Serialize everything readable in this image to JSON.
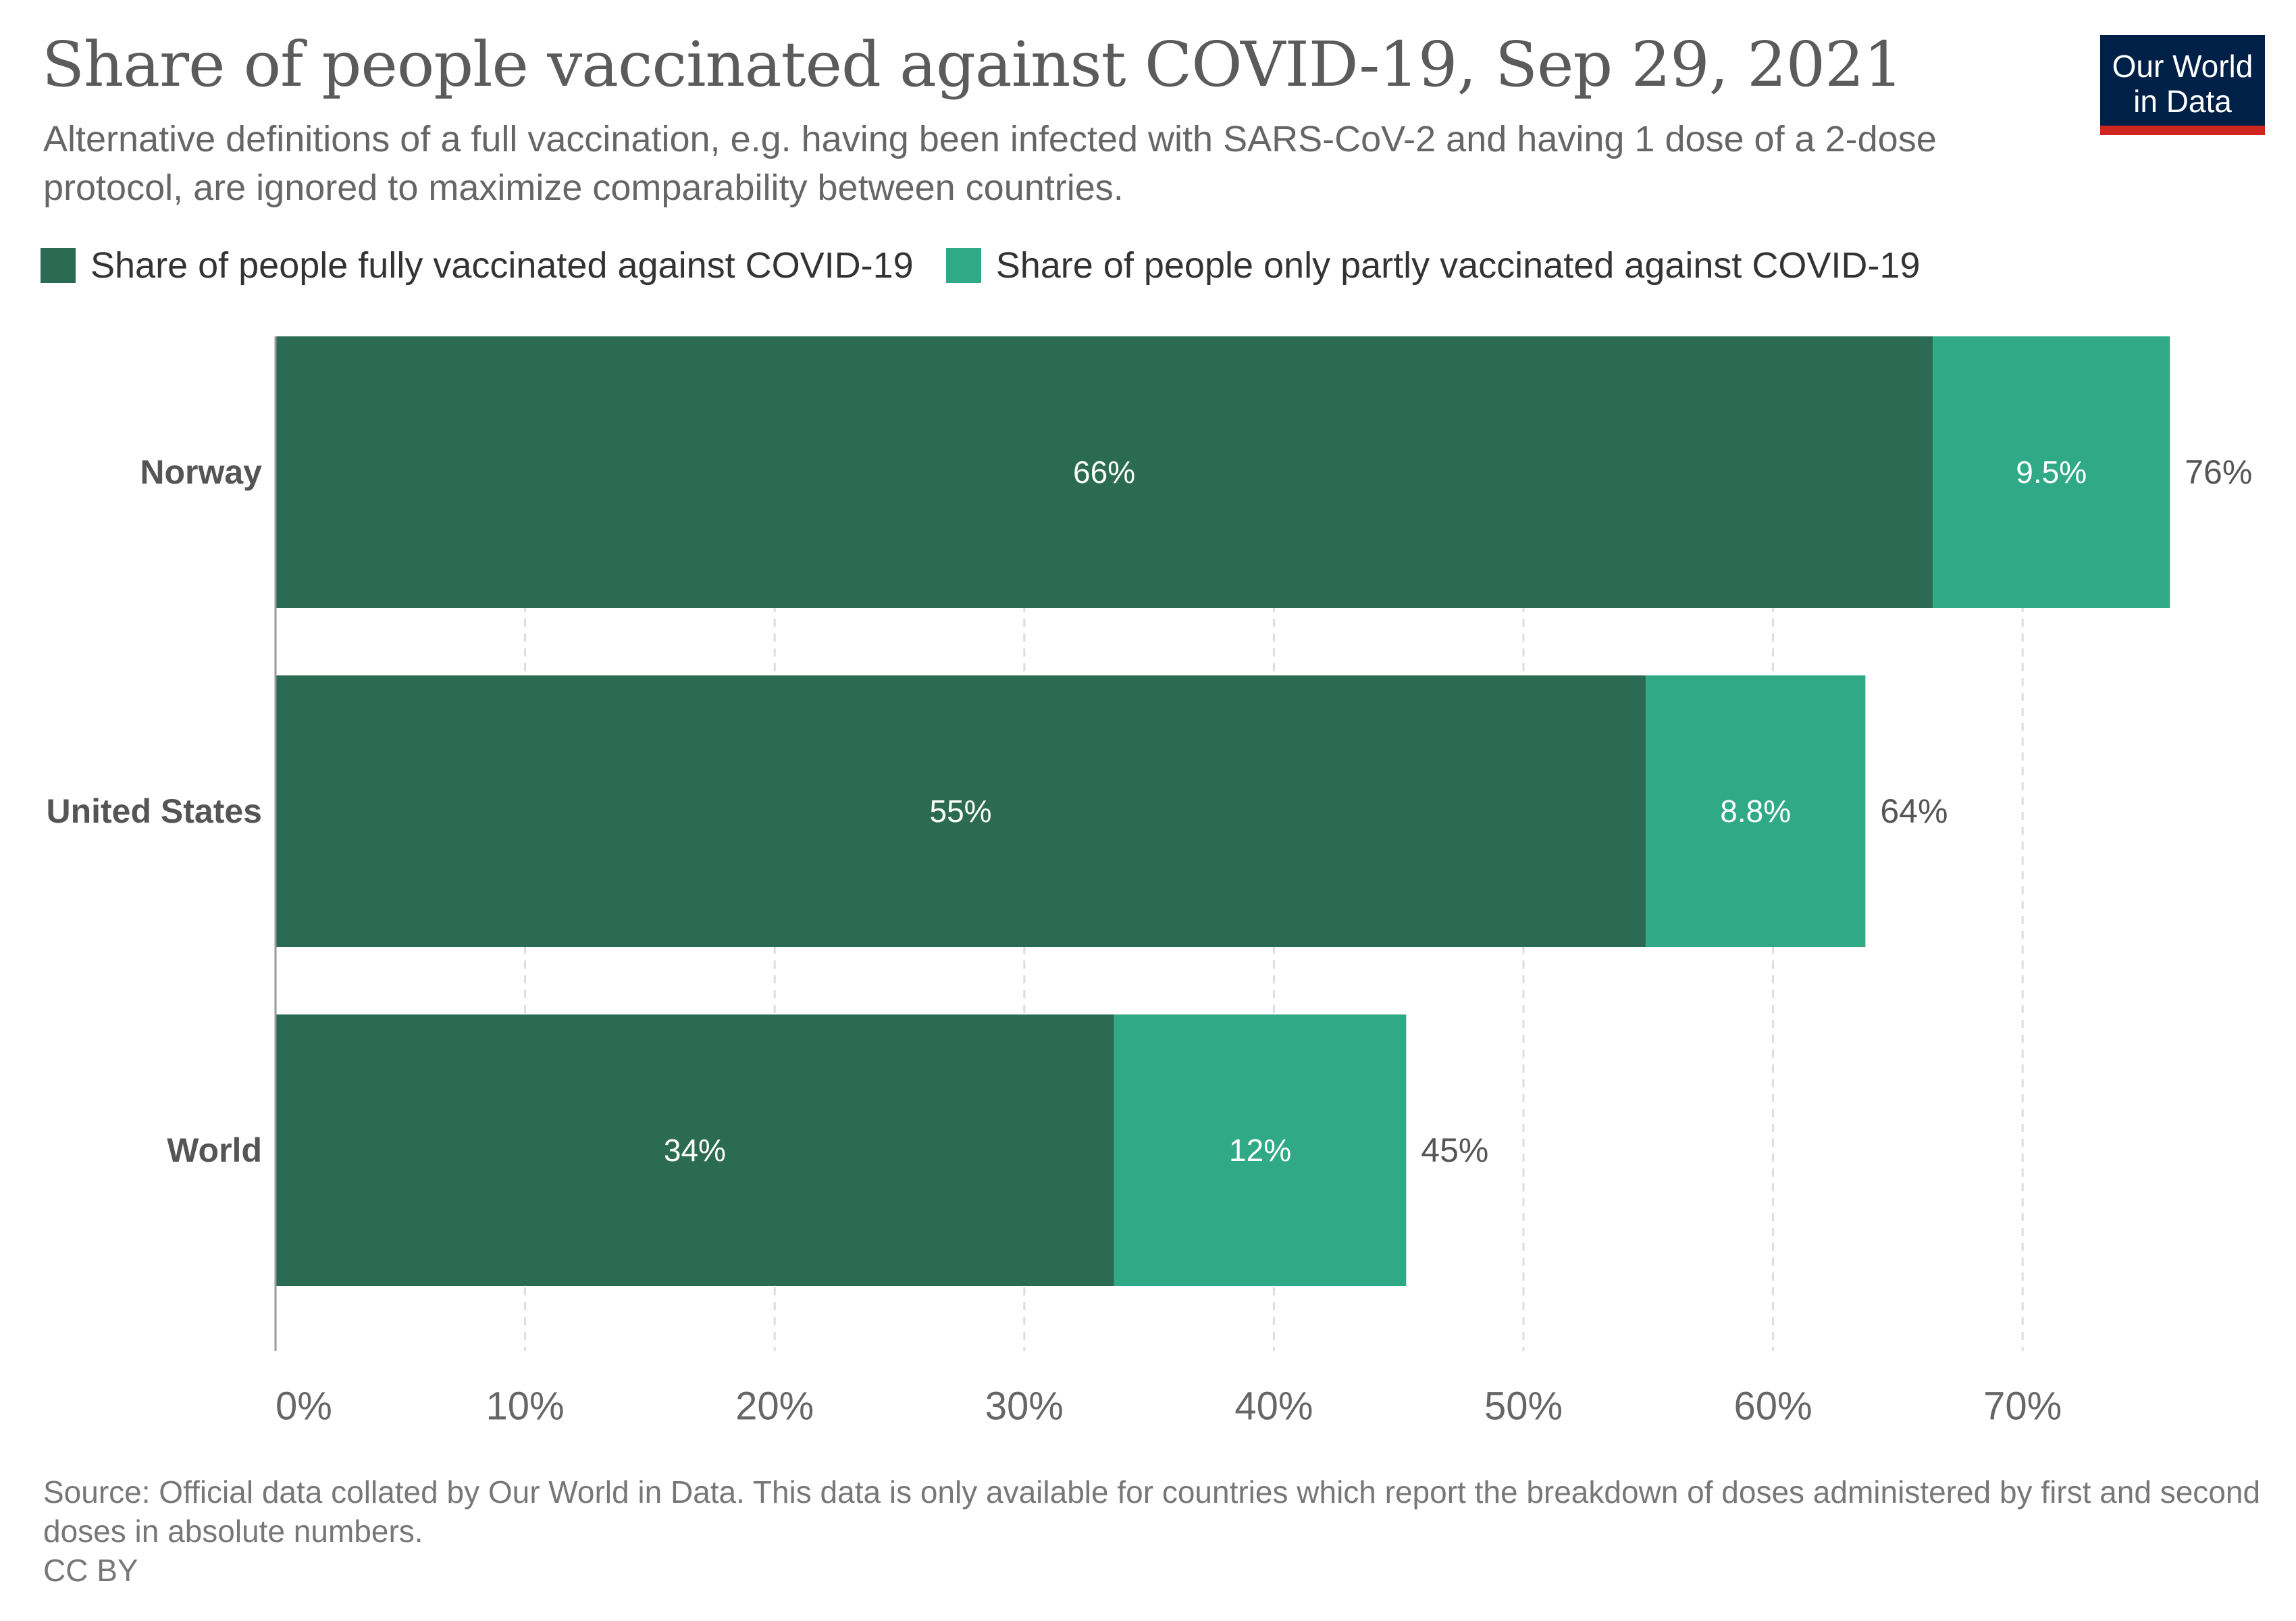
{
  "title": "Share of people vaccinated against COVID-19, Sep 29, 2021",
  "subtitle": "Alternative definitions of a full vaccination, e.g. having been infected with SARS-CoV-2 and having 1 dose of a 2-dose protocol, are ignored to maximize comparability between countries.",
  "logo": {
    "line1": "Our World",
    "line2": "in Data"
  },
  "legend": [
    {
      "label": "Share of people fully vaccinated against COVID-19",
      "color": "#2c6b53"
    },
    {
      "label": "Share of people only partly vaccinated against COVID-19",
      "color": "#30aa86"
    }
  ],
  "footer": {
    "source": "Source: Official data collated by Our World in Data. This data is only available for countries which report the breakdown of doses administered by first and second doses in absolute numbers.",
    "license": "CC BY"
  },
  "chart_data": {
    "type": "bar",
    "orientation": "horizontal",
    "stacked": true,
    "categories": [
      "Norway",
      "United States",
      "World"
    ],
    "series": [
      {
        "name": "Share of people fully vaccinated against COVID-19",
        "values": [
          66.4,
          54.9,
          33.6
        ],
        "labels": [
          "66%",
          "55%",
          "34%"
        ],
        "color": "#2c6b53"
      },
      {
        "name": "Share of people only partly vaccinated against COVID-19",
        "values": [
          9.5,
          8.8,
          11.7
        ],
        "labels": [
          "9.5%",
          "8.8%",
          "12%"
        ],
        "color": "#30aa86"
      }
    ],
    "totals": [
      "76%",
      "64%",
      "45%"
    ],
    "xlim": [
      0,
      75
    ],
    "xticks": [
      0,
      10,
      20,
      30,
      40,
      50,
      60,
      70
    ],
    "xtick_labels": [
      "0%",
      "10%",
      "20%",
      "30%",
      "40%",
      "50%",
      "60%",
      "70%"
    ],
    "grid": "vertical dashed",
    "legend_position": "top"
  }
}
